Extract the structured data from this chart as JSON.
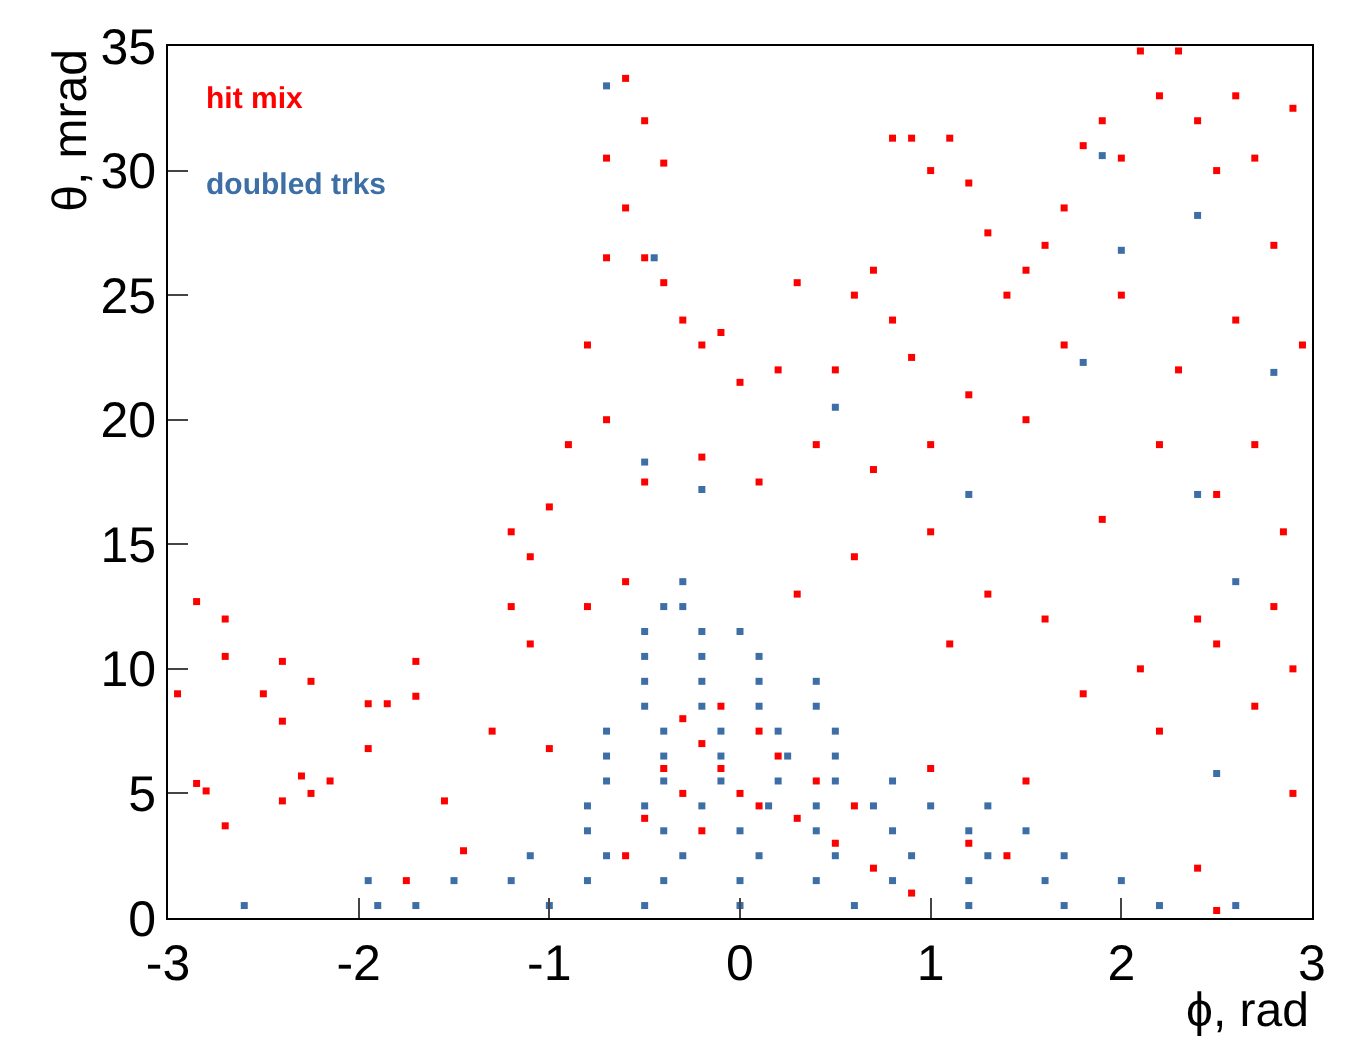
{
  "chart_data": {
    "type": "scatter",
    "xlabel": "ϕ, rad",
    "ylabel": "θ, mrad",
    "marker": "square",
    "xlim": [
      -3,
      3
    ],
    "xticks": [
      -3,
      -2,
      -1,
      0,
      1,
      2,
      3
    ],
    "ylim": [
      0,
      35
    ],
    "yticks": [
      0,
      5,
      10,
      15,
      20,
      25,
      30,
      35
    ],
    "series": [
      {
        "name": "hit mix",
        "color": "#ff0000",
        "x": [
          -0.6,
          -0.7,
          -0.5,
          -0.4,
          -0.6,
          -0.7,
          -0.5,
          -0.4,
          -0.3,
          -0.2,
          -0.1,
          0,
          0.2,
          0.3,
          0.5,
          0.6,
          0.7,
          0.8,
          0.9,
          0.8,
          0.9,
          1.0,
          1.1,
          1.2,
          1.3,
          1.4,
          1.5,
          1.6,
          1.7,
          1.8,
          1.9,
          2.0,
          2.1,
          2.2,
          2.3,
          2.4,
          2.5,
          2.6,
          2.7,
          2.8,
          2.9,
          2.95,
          2.6,
          2.3,
          2.0,
          1.7,
          1.5,
          1.2,
          1.0,
          0.7,
          0.4,
          0.1,
          -0.2,
          -0.5,
          -0.7,
          -0.8,
          -0.9,
          -1.0,
          -1.1,
          -1.2,
          -1.1,
          -1.2,
          -0.8,
          -0.6,
          0.3,
          0.6,
          1.0,
          1.1,
          1.3,
          1.6,
          1.8,
          2.1,
          2.2,
          2.4,
          2.5,
          2.7,
          2.8,
          2.9,
          2.9,
          2.85,
          2.5,
          2.2,
          1.9,
          2.7,
          2.4,
          1.5,
          1.0,
          1.2,
          2.5,
          -2.85,
          -2.7,
          -2.7,
          -2.95,
          -2.4,
          -2.5,
          -2.25,
          -2.4,
          -2.3,
          -2.4,
          -2.25,
          -2.15,
          -2.85,
          -2.8,
          -2.7,
          -1.95,
          -1.85,
          -1.7,
          -1.7,
          -1.95,
          -1.55,
          -1.45,
          -1.75,
          -1.3,
          -1.0,
          -0.3,
          -0.2,
          -0.1,
          0,
          0.1,
          -0.4,
          -0.3,
          0.2,
          0.3,
          0.5,
          0.7,
          -0.5,
          -0.1,
          0.1,
          -0.2,
          0.4,
          0.6,
          0.9,
          1.4,
          -0.6
        ],
        "values": [
          33.7,
          30.5,
          32,
          30.3,
          28.5,
          26.5,
          26.5,
          25.5,
          24,
          23,
          23.5,
          21.5,
          22,
          25.5,
          22,
          25,
          26,
          24,
          22.5,
          31.3,
          31.3,
          30,
          31.3,
          29.5,
          27.5,
          25,
          26,
          27,
          28.5,
          31,
          32,
          30.5,
          34.8,
          33,
          34.8,
          32,
          30,
          33,
          30.5,
          27,
          32.5,
          23,
          24,
          22,
          25,
          23,
          20,
          21,
          19,
          18,
          19,
          17.5,
          18.5,
          17.5,
          20,
          23,
          19,
          16.5,
          14.5,
          15.5,
          11,
          12.5,
          12.5,
          13.5,
          13,
          14.5,
          15.5,
          11,
          13,
          12,
          9,
          10,
          7.5,
          12,
          11,
          8.5,
          12.5,
          10,
          5,
          15.5,
          17,
          19,
          16,
          19,
          2,
          5.5,
          6,
          3,
          0.3,
          12.7,
          12,
          10.5,
          9,
          10.3,
          9,
          9.5,
          7.9,
          5.7,
          4.7,
          5,
          5.5,
          5.4,
          5.1,
          3.7,
          8.6,
          8.6,
          10.3,
          8.9,
          6.8,
          4.7,
          2.7,
          1.5,
          7.5,
          6.8,
          8,
          7,
          6,
          5,
          4.5,
          6,
          5,
          6.5,
          4,
          3,
          2,
          4,
          8.5,
          7.5,
          3.5,
          5.5,
          4.5,
          1,
          2.5,
          2.5
        ]
      },
      {
        "name": "doubled trks",
        "color": "#3d6fa6",
        "x": [
          -2.6,
          -1.9,
          -1.7,
          -1.0,
          -0.5,
          0,
          0.6,
          1.2,
          1.7,
          2.2,
          2.6,
          -1.95,
          -1.5,
          -1.2,
          -0.8,
          -0.4,
          0,
          0.4,
          0.8,
          1.2,
          1.6,
          2.0,
          -1.1,
          -0.7,
          -0.3,
          0.1,
          0.5,
          0.9,
          1.3,
          1.7,
          -0.8,
          -0.4,
          0,
          0.4,
          0.8,
          1.2,
          1.5,
          -0.8,
          -0.5,
          -0.2,
          0.15,
          0.4,
          0.7,
          1.0,
          1.3,
          -0.7,
          -0.4,
          -0.1,
          0.2,
          0.5,
          0.8,
          -0.7,
          -0.4,
          -0.1,
          0.25,
          0.5,
          -0.7,
          -0.4,
          -0.1,
          0.2,
          0.5,
          -0.5,
          -0.2,
          0.1,
          0.4,
          -0.5,
          -0.2,
          0.1,
          0.4,
          -0.5,
          -0.2,
          0.1,
          -0.5,
          -0.2,
          0,
          -0.4,
          -0.3,
          -0.3,
          -0.7,
          -0.45,
          -0.5,
          0.5,
          1.9,
          2.0,
          1.8,
          2.4,
          2.8,
          2.6,
          2.5,
          -0.2,
          1.2,
          2.4
        ],
        "values": [
          0.5,
          0.5,
          0.5,
          0.5,
          0.5,
          0.5,
          0.5,
          0.5,
          0.5,
          0.5,
          0.5,
          1.5,
          1.5,
          1.5,
          1.5,
          1.5,
          1.5,
          1.5,
          1.5,
          1.5,
          1.5,
          1.5,
          2.5,
          2.5,
          2.5,
          2.5,
          2.5,
          2.5,
          2.5,
          2.5,
          3.5,
          3.5,
          3.5,
          3.5,
          3.5,
          3.5,
          3.5,
          4.5,
          4.5,
          4.5,
          4.5,
          4.5,
          4.5,
          4.5,
          4.5,
          5.5,
          5.5,
          5.5,
          5.5,
          5.5,
          5.5,
          6.5,
          6.5,
          6.5,
          6.5,
          6.5,
          7.5,
          7.5,
          7.5,
          7.5,
          7.5,
          8.5,
          8.5,
          8.5,
          8.5,
          9.5,
          9.5,
          9.5,
          9.5,
          10.5,
          10.5,
          10.5,
          11.5,
          11.5,
          11.5,
          12.5,
          12.5,
          13.5,
          33.4,
          26.5,
          18.3,
          20.5,
          30.6,
          26.8,
          22.3,
          28.2,
          21.9,
          13.5,
          5.8,
          17.2,
          17,
          17
        ]
      }
    ]
  }
}
